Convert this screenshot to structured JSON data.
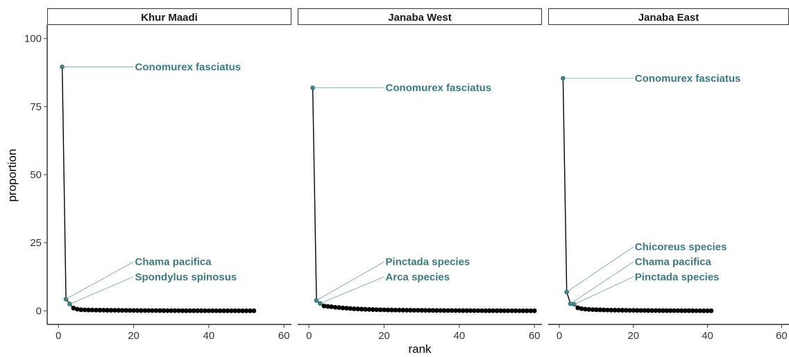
{
  "chart_data": {
    "type": "line",
    "xlabel": "rank",
    "ylabel": "proportion",
    "xlim": [
      -3,
      62
    ],
    "ylim": [
      -5,
      105
    ],
    "x_ticks": [
      0,
      20,
      40,
      60
    ],
    "y_ticks": [
      0,
      25,
      50,
      75,
      100
    ],
    "highlight_color": "#3b7a80",
    "point_color": "#000000",
    "panels": [
      {
        "name": "Khur Maadi",
        "points": [
          [
            1,
            89.6
          ],
          [
            2,
            4.3
          ],
          [
            3,
            2.5
          ],
          [
            4,
            1.0
          ],
          [
            5,
            0.6
          ],
          [
            6,
            0.4
          ],
          [
            7,
            0.35
          ],
          [
            8,
            0.3
          ],
          [
            9,
            0.28
          ],
          [
            10,
            0.26
          ],
          [
            11,
            0.24
          ],
          [
            12,
            0.22
          ],
          [
            13,
            0.2
          ],
          [
            14,
            0.19
          ],
          [
            15,
            0.18
          ],
          [
            16,
            0.17
          ],
          [
            17,
            0.16
          ],
          [
            18,
            0.15
          ],
          [
            19,
            0.14
          ],
          [
            20,
            0.13
          ],
          [
            21,
            0.12
          ],
          [
            22,
            0.11
          ],
          [
            23,
            0.1
          ],
          [
            24,
            0.1
          ],
          [
            25,
            0.09
          ],
          [
            26,
            0.09
          ],
          [
            27,
            0.08
          ],
          [
            28,
            0.08
          ],
          [
            29,
            0.07
          ],
          [
            30,
            0.07
          ],
          [
            31,
            0.06
          ],
          [
            32,
            0.06
          ],
          [
            33,
            0.05
          ],
          [
            34,
            0.05
          ],
          [
            35,
            0.05
          ],
          [
            36,
            0.04
          ],
          [
            37,
            0.04
          ],
          [
            38,
            0.04
          ],
          [
            39,
            0.03
          ],
          [
            40,
            0.03
          ],
          [
            41,
            0.03
          ],
          [
            42,
            0.03
          ],
          [
            43,
            0.02
          ],
          [
            44,
            0.02
          ],
          [
            45,
            0.02
          ],
          [
            46,
            0.02
          ],
          [
            47,
            0.02
          ],
          [
            48,
            0.01
          ],
          [
            49,
            0.01
          ],
          [
            50,
            0.01
          ],
          [
            51,
            0.01
          ],
          [
            52,
            0.01
          ]
        ],
        "annotations": [
          {
            "label": "Conomurex fasciatus",
            "rank": 1,
            "value": 89.6,
            "label_x": 20,
            "label_y": 89.6
          },
          {
            "label": "Chama pacifica",
            "rank": 2,
            "value": 4.3,
            "label_x": 20,
            "label_y": 18
          },
          {
            "label": "Spondylus spinosus",
            "rank": 3,
            "value": 2.5,
            "label_x": 20,
            "label_y": 12.5
          }
        ]
      },
      {
        "name": "Janaba West",
        "points": [
          [
            1,
            81.9
          ],
          [
            2,
            3.8
          ],
          [
            3,
            2.7
          ],
          [
            4,
            1.8
          ],
          [
            5,
            1.6
          ],
          [
            6,
            1.5
          ],
          [
            7,
            1.3
          ],
          [
            8,
            1.2
          ],
          [
            9,
            1.05
          ],
          [
            10,
            0.95
          ],
          [
            11,
            0.85
          ],
          [
            12,
            0.75
          ],
          [
            13,
            0.68
          ],
          [
            14,
            0.62
          ],
          [
            15,
            0.56
          ],
          [
            16,
            0.5
          ],
          [
            17,
            0.46
          ],
          [
            18,
            0.42
          ],
          [
            19,
            0.38
          ],
          [
            20,
            0.35
          ],
          [
            21,
            0.32
          ],
          [
            22,
            0.3
          ],
          [
            23,
            0.28
          ],
          [
            24,
            0.26
          ],
          [
            25,
            0.24
          ],
          [
            26,
            0.22
          ],
          [
            27,
            0.2
          ],
          [
            28,
            0.19
          ],
          [
            29,
            0.18
          ],
          [
            30,
            0.17
          ],
          [
            31,
            0.16
          ],
          [
            32,
            0.15
          ],
          [
            33,
            0.14
          ],
          [
            34,
            0.13
          ],
          [
            35,
            0.12
          ],
          [
            36,
            0.11
          ],
          [
            37,
            0.1
          ],
          [
            38,
            0.1
          ],
          [
            39,
            0.09
          ],
          [
            40,
            0.09
          ],
          [
            41,
            0.08
          ],
          [
            42,
            0.08
          ],
          [
            43,
            0.07
          ],
          [
            44,
            0.07
          ],
          [
            45,
            0.06
          ],
          [
            46,
            0.06
          ],
          [
            47,
            0.05
          ],
          [
            48,
            0.05
          ],
          [
            49,
            0.05
          ],
          [
            50,
            0.04
          ],
          [
            51,
            0.04
          ],
          [
            52,
            0.04
          ],
          [
            53,
            0.03
          ],
          [
            54,
            0.03
          ],
          [
            55,
            0.03
          ],
          [
            56,
            0.02
          ],
          [
            57,
            0.02
          ],
          [
            58,
            0.02
          ],
          [
            59,
            0.01
          ],
          [
            60,
            0.01
          ]
        ],
        "annotations": [
          {
            "label": "Conomurex fasciatus",
            "rank": 1,
            "value": 81.9,
            "label_x": 20,
            "label_y": 81.9
          },
          {
            "label": "Pinctada species",
            "rank": 2,
            "value": 3.8,
            "label_x": 20,
            "label_y": 18
          },
          {
            "label": "Arca species",
            "rank": 3,
            "value": 2.7,
            "label_x": 20,
            "label_y": 12.5
          }
        ]
      },
      {
        "name": "Janaba East",
        "points": [
          [
            1,
            85.4
          ],
          [
            2,
            6.9
          ],
          [
            3,
            2.6
          ],
          [
            4,
            2.4
          ],
          [
            5,
            1.1
          ],
          [
            6,
            0.8
          ],
          [
            7,
            0.6
          ],
          [
            8,
            0.5
          ],
          [
            9,
            0.45
          ],
          [
            10,
            0.4
          ],
          [
            11,
            0.36
          ],
          [
            12,
            0.32
          ],
          [
            13,
            0.29
          ],
          [
            14,
            0.26
          ],
          [
            15,
            0.24
          ],
          [
            16,
            0.22
          ],
          [
            17,
            0.2
          ],
          [
            18,
            0.18
          ],
          [
            19,
            0.16
          ],
          [
            20,
            0.15
          ],
          [
            21,
            0.14
          ],
          [
            22,
            0.13
          ],
          [
            23,
            0.12
          ],
          [
            24,
            0.11
          ],
          [
            25,
            0.1
          ],
          [
            26,
            0.09
          ],
          [
            27,
            0.08
          ],
          [
            28,
            0.08
          ],
          [
            29,
            0.07
          ],
          [
            30,
            0.07
          ],
          [
            31,
            0.06
          ],
          [
            32,
            0.06
          ],
          [
            33,
            0.05
          ],
          [
            34,
            0.05
          ],
          [
            35,
            0.04
          ],
          [
            36,
            0.04
          ],
          [
            37,
            0.03
          ],
          [
            38,
            0.03
          ],
          [
            39,
            0.02
          ],
          [
            40,
            0.02
          ],
          [
            41,
            0.01
          ]
        ],
        "annotations": [
          {
            "label": "Conomurex fasciatus",
            "rank": 1,
            "value": 85.4,
            "label_x": 20,
            "label_y": 85.4
          },
          {
            "label": "Chicoreus species",
            "rank": 2,
            "value": 6.9,
            "label_x": 20,
            "label_y": 23.5
          },
          {
            "label": "Chama pacifica",
            "rank": 3,
            "value": 2.6,
            "label_x": 20,
            "label_y": 18
          },
          {
            "label": "Pinctada species",
            "rank": 4,
            "value": 2.4,
            "label_x": 20,
            "label_y": 12.5
          }
        ]
      }
    ]
  }
}
